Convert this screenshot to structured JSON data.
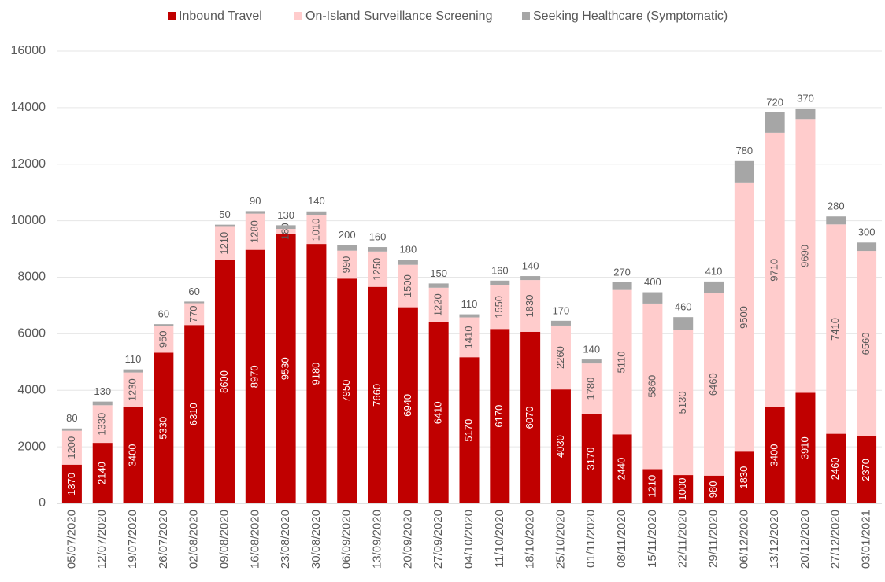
{
  "chart_data": {
    "type": "stacked_bar",
    "categories": [
      "05/07/2020",
      "12/07/2020",
      "19/07/2020",
      "26/07/2020",
      "02/08/2020",
      "09/08/2020",
      "16/08/2020",
      "23/08/2020",
      "30/08/2020",
      "06/09/2020",
      "13/09/2020",
      "20/09/2020",
      "27/09/2020",
      "04/10/2020",
      "11/10/2020",
      "18/10/2020",
      "25/10/2020",
      "01/11/2020",
      "08/11/2020",
      "15/11/2020",
      "22/11/2020",
      "29/11/2020",
      "06/12/2020",
      "13/12/2020",
      "20/12/2020",
      "27/12/2020",
      "03/01/2021"
    ],
    "series": [
      {
        "name": "Inbound Travel",
        "color": "#c00000",
        "label_color": "#ffffff",
        "values": [
          1370,
          2140,
          3400,
          5330,
          6310,
          8600,
          8970,
          9530,
          9180,
          7950,
          7660,
          6940,
          6410,
          5170,
          6170,
          6070,
          4030,
          3170,
          2440,
          1210,
          1000,
          980,
          1830,
          3400,
          3910,
          2460,
          2370
        ]
      },
      {
        "name": "On-Island Surveillance Screening",
        "color": "#ffcccc",
        "label_color": "#595959",
        "values": [
          1200,
          1330,
          1230,
          950,
          770,
          1210,
          1280,
          180,
          1010,
          990,
          1250,
          1500,
          1220,
          1410,
          1550,
          1830,
          2260,
          1780,
          5110,
          5860,
          5130,
          6460,
          9500,
          9710,
          9690,
          7410,
          6560
        ]
      },
      {
        "name": "Seeking Healthcare (Symptomatic)",
        "color": "#a6a6a6",
        "label_color": "#595959",
        "values": [
          80,
          130,
          110,
          60,
          60,
          50,
          90,
          130,
          140,
          200,
          160,
          180,
          150,
          110,
          160,
          140,
          170,
          140,
          270,
          400,
          460,
          410,
          780,
          720,
          370,
          280,
          300
        ]
      }
    ],
    "ylim": [
      0,
      16000
    ],
    "yticks": [
      0,
      2000,
      4000,
      6000,
      8000,
      10000,
      12000,
      14000,
      16000
    ],
    "grid": true,
    "legend": "top"
  }
}
